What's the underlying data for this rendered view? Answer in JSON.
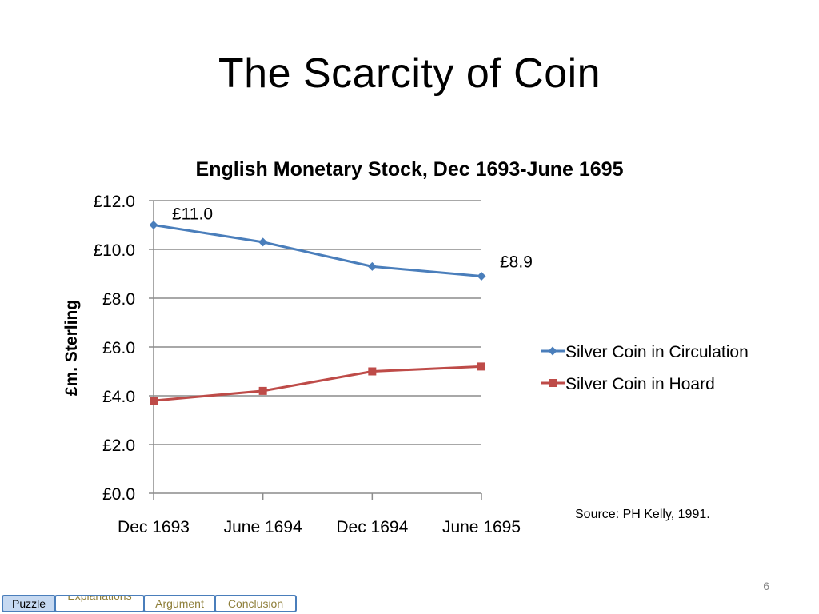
{
  "slide": {
    "title": "The Scarcity of Coin",
    "source": "Source: PH Kelly, 1991.",
    "page_number": "6"
  },
  "nav": {
    "tabs": [
      {
        "label": "Puzzle",
        "active": true
      },
      {
        "label": "Explanations",
        "active": false
      },
      {
        "label": "Argument",
        "active": false
      },
      {
        "label": "Conclusion",
        "active": false
      }
    ]
  },
  "chart_data": {
    "type": "line",
    "title": "English Monetary Stock, Dec 1693-June 1695",
    "xlabel": "",
    "ylabel": "£m. Sterling",
    "categories": [
      "Dec 1693",
      "June 1694",
      "Dec 1694",
      "June 1695"
    ],
    "ylim": [
      0,
      12
    ],
    "yticks": [
      0,
      2,
      4,
      6,
      8,
      10,
      12
    ],
    "ytick_labels": [
      "£0.0",
      "£2.0",
      "£4.0",
      "£6.0",
      "£8.0",
      "£10.0",
      "£12.0"
    ],
    "grid": true,
    "legend": "right",
    "series": [
      {
        "name": "Silver Coin in Circulation",
        "values": [
          11.0,
          10.3,
          9.3,
          8.9
        ],
        "color": "#4a7ebb",
        "marker": "diamond"
      },
      {
        "name": "Silver Coin in Hoard",
        "values": [
          3.8,
          4.2,
          5.0,
          5.2
        ],
        "color": "#be4b48",
        "marker": "square"
      }
    ],
    "annotations": [
      {
        "text": "£11.0",
        "series": 0,
        "index": 0
      },
      {
        "text": "£8.9",
        "series": 0,
        "index": 3
      }
    ]
  }
}
